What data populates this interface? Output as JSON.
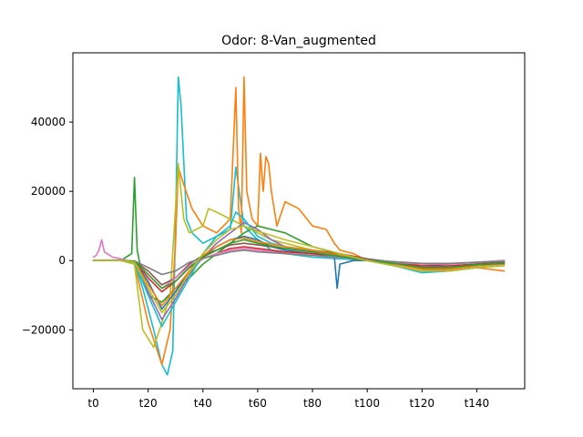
{
  "chart_data": {
    "type": "line",
    "title": "Odor: 8-Van_augmented",
    "xlabel": "",
    "ylabel": "",
    "xlim": [
      -7.5,
      157.5
    ],
    "ylim": [
      -37000,
      60000
    ],
    "x_ticks": [
      {
        "value": 0,
        "label": "t0"
      },
      {
        "value": 20,
        "label": "t20"
      },
      {
        "value": 40,
        "label": "t40"
      },
      {
        "value": 60,
        "label": "t60"
      },
      {
        "value": 80,
        "label": "t80"
      },
      {
        "value": 100,
        "label": "t100"
      },
      {
        "value": 120,
        "label": "t120"
      },
      {
        "value": 140,
        "label": "t140"
      }
    ],
    "y_ticks": [
      {
        "value": -20000,
        "label": "−20000"
      },
      {
        "value": 0,
        "label": "0"
      },
      {
        "value": 20000,
        "label": "20000"
      },
      {
        "value": 40000,
        "label": "40000"
      }
    ],
    "grid": false,
    "legend": "none",
    "color_cycle": [
      "#1f77b4",
      "#ff7f0e",
      "#2ca02c",
      "#d62728",
      "#9467bd",
      "#8c564b",
      "#e377c2",
      "#7f7f7f",
      "#bcbd22",
      "#17becf"
    ],
    "series": [
      {
        "color": "#17becf",
        "x": [
          0,
          10,
          15,
          18,
          22,
          25,
          27,
          29,
          30,
          31,
          32,
          34,
          36,
          40,
          45,
          50,
          52,
          55,
          60,
          65,
          70,
          80,
          90,
          100,
          110,
          120,
          130,
          140,
          150
        ],
        "y": [
          0,
          200,
          -500,
          -8000,
          -20000,
          -30000,
          -33000,
          -26000,
          10000,
          53000,
          45000,
          12000,
          8000,
          5000,
          7000,
          9000,
          27000,
          10000,
          6000,
          3000,
          2000,
          1000,
          500,
          0,
          -1000,
          -2000,
          -1500,
          -1000,
          -500
        ]
      },
      {
        "color": "#ff7f0e",
        "x": [
          0,
          10,
          15,
          20,
          25,
          28,
          30,
          31,
          33,
          36,
          40,
          45,
          50,
          52,
          53,
          54,
          55,
          56,
          58,
          60,
          61,
          62,
          63,
          64,
          65,
          67,
          70,
          75,
          80,
          85,
          88,
          90,
          95,
          100,
          110,
          120,
          130,
          140,
          150
        ],
        "y": [
          0,
          100,
          -1000,
          -18000,
          -30000,
          -20000,
          5000,
          27000,
          22000,
          15000,
          10000,
          8000,
          12000,
          50000,
          15000,
          8000,
          53000,
          20000,
          12000,
          10000,
          31000,
          20000,
          30000,
          28000,
          20000,
          10000,
          17000,
          15000,
          10000,
          9000,
          5000,
          3000,
          2000,
          0,
          -1000,
          -2000,
          -3000,
          -2000,
          -3000
        ]
      },
      {
        "color": "#2ca02c",
        "x": [
          0,
          10,
          14,
          15,
          16,
          18,
          20,
          25,
          30,
          35,
          40,
          45,
          50,
          55,
          60,
          65,
          70,
          75,
          80,
          85,
          90,
          95,
          100,
          110,
          120,
          130,
          140,
          150
        ],
        "y": [
          0,
          0,
          2000,
          24000,
          3000,
          -5000,
          -10000,
          -12000,
          -8000,
          -5000,
          -1000,
          2000,
          5000,
          8000,
          10000,
          9000,
          8000,
          6000,
          4000,
          3000,
          2000,
          1000,
          0,
          -1000,
          -2000,
          -2000,
          -1000,
          -500
        ]
      },
      {
        "color": "#bcbd22",
        "x": [
          0,
          10,
          15,
          18,
          22,
          25,
          28,
          31,
          33,
          35,
          40,
          42,
          45,
          50,
          55,
          60,
          65,
          70,
          80,
          90,
          100,
          110,
          120,
          130,
          140,
          150
        ],
        "y": [
          0,
          0,
          -1000,
          -20000,
          -25000,
          -18000,
          -10000,
          28000,
          12000,
          8000,
          10000,
          15000,
          14000,
          12000,
          10000,
          8000,
          6000,
          5000,
          3000,
          1000,
          0,
          -1000,
          -2000,
          -2000,
          -1000,
          -1000
        ]
      },
      {
        "color": "#1f77b4",
        "x": [
          0,
          10,
          15,
          20,
          25,
          30,
          35,
          40,
          45,
          50,
          55,
          60,
          65,
          70,
          80,
          88,
          89,
          90,
          95,
          100,
          110,
          120,
          130,
          140,
          150
        ],
        "y": [
          0,
          0,
          -500,
          -6000,
          -14000,
          -9000,
          -3000,
          1000,
          4000,
          6000,
          7000,
          6000,
          4000,
          3000,
          2000,
          1000,
          -8000,
          -1000,
          0,
          0,
          -1000,
          -1500,
          -1000,
          -500,
          0
        ]
      },
      {
        "color": "#d62728",
        "x": [
          0,
          10,
          15,
          20,
          25,
          30,
          35,
          40,
          45,
          50,
          55,
          60,
          65,
          70,
          80,
          90,
          100,
          110,
          120,
          130,
          140,
          150
        ],
        "y": [
          0,
          0,
          -200,
          -5000,
          -9000,
          -6000,
          -2000,
          500,
          2000,
          3500,
          4000,
          3500,
          3000,
          2500,
          2000,
          1000,
          0,
          -500,
          -1500,
          -1500,
          -1000,
          -500
        ]
      },
      {
        "color": "#9467bd",
        "x": [
          0,
          10,
          15,
          20,
          25,
          30,
          35,
          40,
          45,
          50,
          55,
          60,
          65,
          70,
          80,
          90,
          100,
          110,
          120,
          130,
          140,
          150
        ],
        "y": [
          0,
          0,
          -300,
          -9000,
          -17000,
          -11000,
          -4000,
          1000,
          5000,
          8000,
          11000,
          9000,
          6000,
          4000,
          3000,
          1500,
          0,
          -1500,
          -3000,
          -2500,
          -1500,
          -1000
        ]
      },
      {
        "color": "#8c564b",
        "x": [
          0,
          10,
          15,
          20,
          25,
          30,
          35,
          40,
          45,
          50,
          55,
          60,
          65,
          70,
          80,
          90,
          100,
          110,
          120,
          130,
          140,
          150
        ],
        "y": [
          0,
          0,
          -200,
          -3000,
          -7000,
          -5000,
          -1000,
          1500,
          3000,
          4500,
          5000,
          4500,
          4000,
          3500,
          3000,
          2000,
          500,
          -500,
          -2000,
          -2000,
          -1000,
          -500
        ]
      },
      {
        "color": "#e377c2",
        "x": [
          0,
          1,
          2,
          3,
          4,
          5,
          7,
          10,
          15,
          20,
          25,
          30,
          35,
          40,
          45,
          50,
          55,
          60,
          70,
          80,
          90,
          100,
          110,
          120,
          130,
          140,
          150
        ],
        "y": [
          1000,
          1500,
          3000,
          6000,
          2500,
          2000,
          1000,
          500,
          -500,
          -4000,
          -8000,
          -5000,
          -1500,
          500,
          2000,
          3000,
          3500,
          3000,
          2000,
          1500,
          800,
          0,
          -500,
          -1000,
          -1000,
          -500,
          0
        ]
      },
      {
        "color": "#7f7f7f",
        "x": [
          0,
          10,
          15,
          20,
          25,
          30,
          35,
          40,
          45,
          50,
          55,
          60,
          70,
          80,
          90,
          100,
          110,
          120,
          130,
          140,
          150
        ],
        "y": [
          0,
          0,
          -100,
          -2000,
          -4000,
          -3000,
          -500,
          800,
          1500,
          2500,
          3000,
          2500,
          2000,
          1500,
          1000,
          200,
          -300,
          -800,
          -800,
          -500,
          -200
        ]
      },
      {
        "color": "#17becf",
        "x": [
          0,
          10,
          15,
          20,
          25,
          30,
          35,
          40,
          45,
          50,
          52,
          55,
          58,
          60,
          65,
          70,
          80,
          90,
          100,
          110,
          120,
          130,
          140,
          150
        ],
        "y": [
          0,
          0,
          -500,
          -10000,
          -19000,
          -12000,
          -5000,
          2000,
          7000,
          10000,
          14000,
          12000,
          9000,
          7000,
          5000,
          4000,
          2500,
          1000,
          0,
          -1500,
          -3500,
          -3000,
          -2000,
          -1500
        ]
      },
      {
        "color": "#ff7f0e",
        "x": [
          0,
          10,
          15,
          20,
          25,
          30,
          35,
          40,
          45,
          50,
          55,
          60,
          70,
          80,
          90,
          100,
          110,
          120,
          130,
          140,
          150
        ],
        "y": [
          0,
          0,
          -300,
          -7000,
          -13000,
          -8000,
          -3000,
          1500,
          4000,
          6000,
          6500,
          5500,
          4000,
          3000,
          1500,
          0,
          -1000,
          -2500,
          -2500,
          -1500,
          -1000
        ]
      },
      {
        "color": "#2ca02c",
        "x": [
          0,
          10,
          15,
          20,
          25,
          30,
          35,
          40,
          45,
          50,
          55,
          60,
          70,
          80,
          90,
          100,
          110,
          120,
          130,
          140,
          150
        ],
        "y": [
          0,
          0,
          -200,
          -4000,
          -8000,
          -6000,
          -2000,
          1000,
          3000,
          5000,
          6000,
          5000,
          3500,
          2500,
          1200,
          0,
          -800,
          -2000,
          -2000,
          -1200,
          -800
        ]
      },
      {
        "color": "#bcbd22",
        "x": [
          0,
          10,
          15,
          20,
          25,
          30,
          35,
          40,
          45,
          50,
          55,
          60,
          70,
          80,
          90,
          100,
          110,
          120,
          130,
          140,
          150
        ],
        "y": [
          0,
          0,
          -400,
          -8000,
          -15000,
          -10000,
          -3500,
          2000,
          6000,
          9000,
          10000,
          8500,
          6000,
          4000,
          2000,
          0,
          -1500,
          -3000,
          -3000,
          -2000,
          -1500
        ]
      }
    ]
  }
}
